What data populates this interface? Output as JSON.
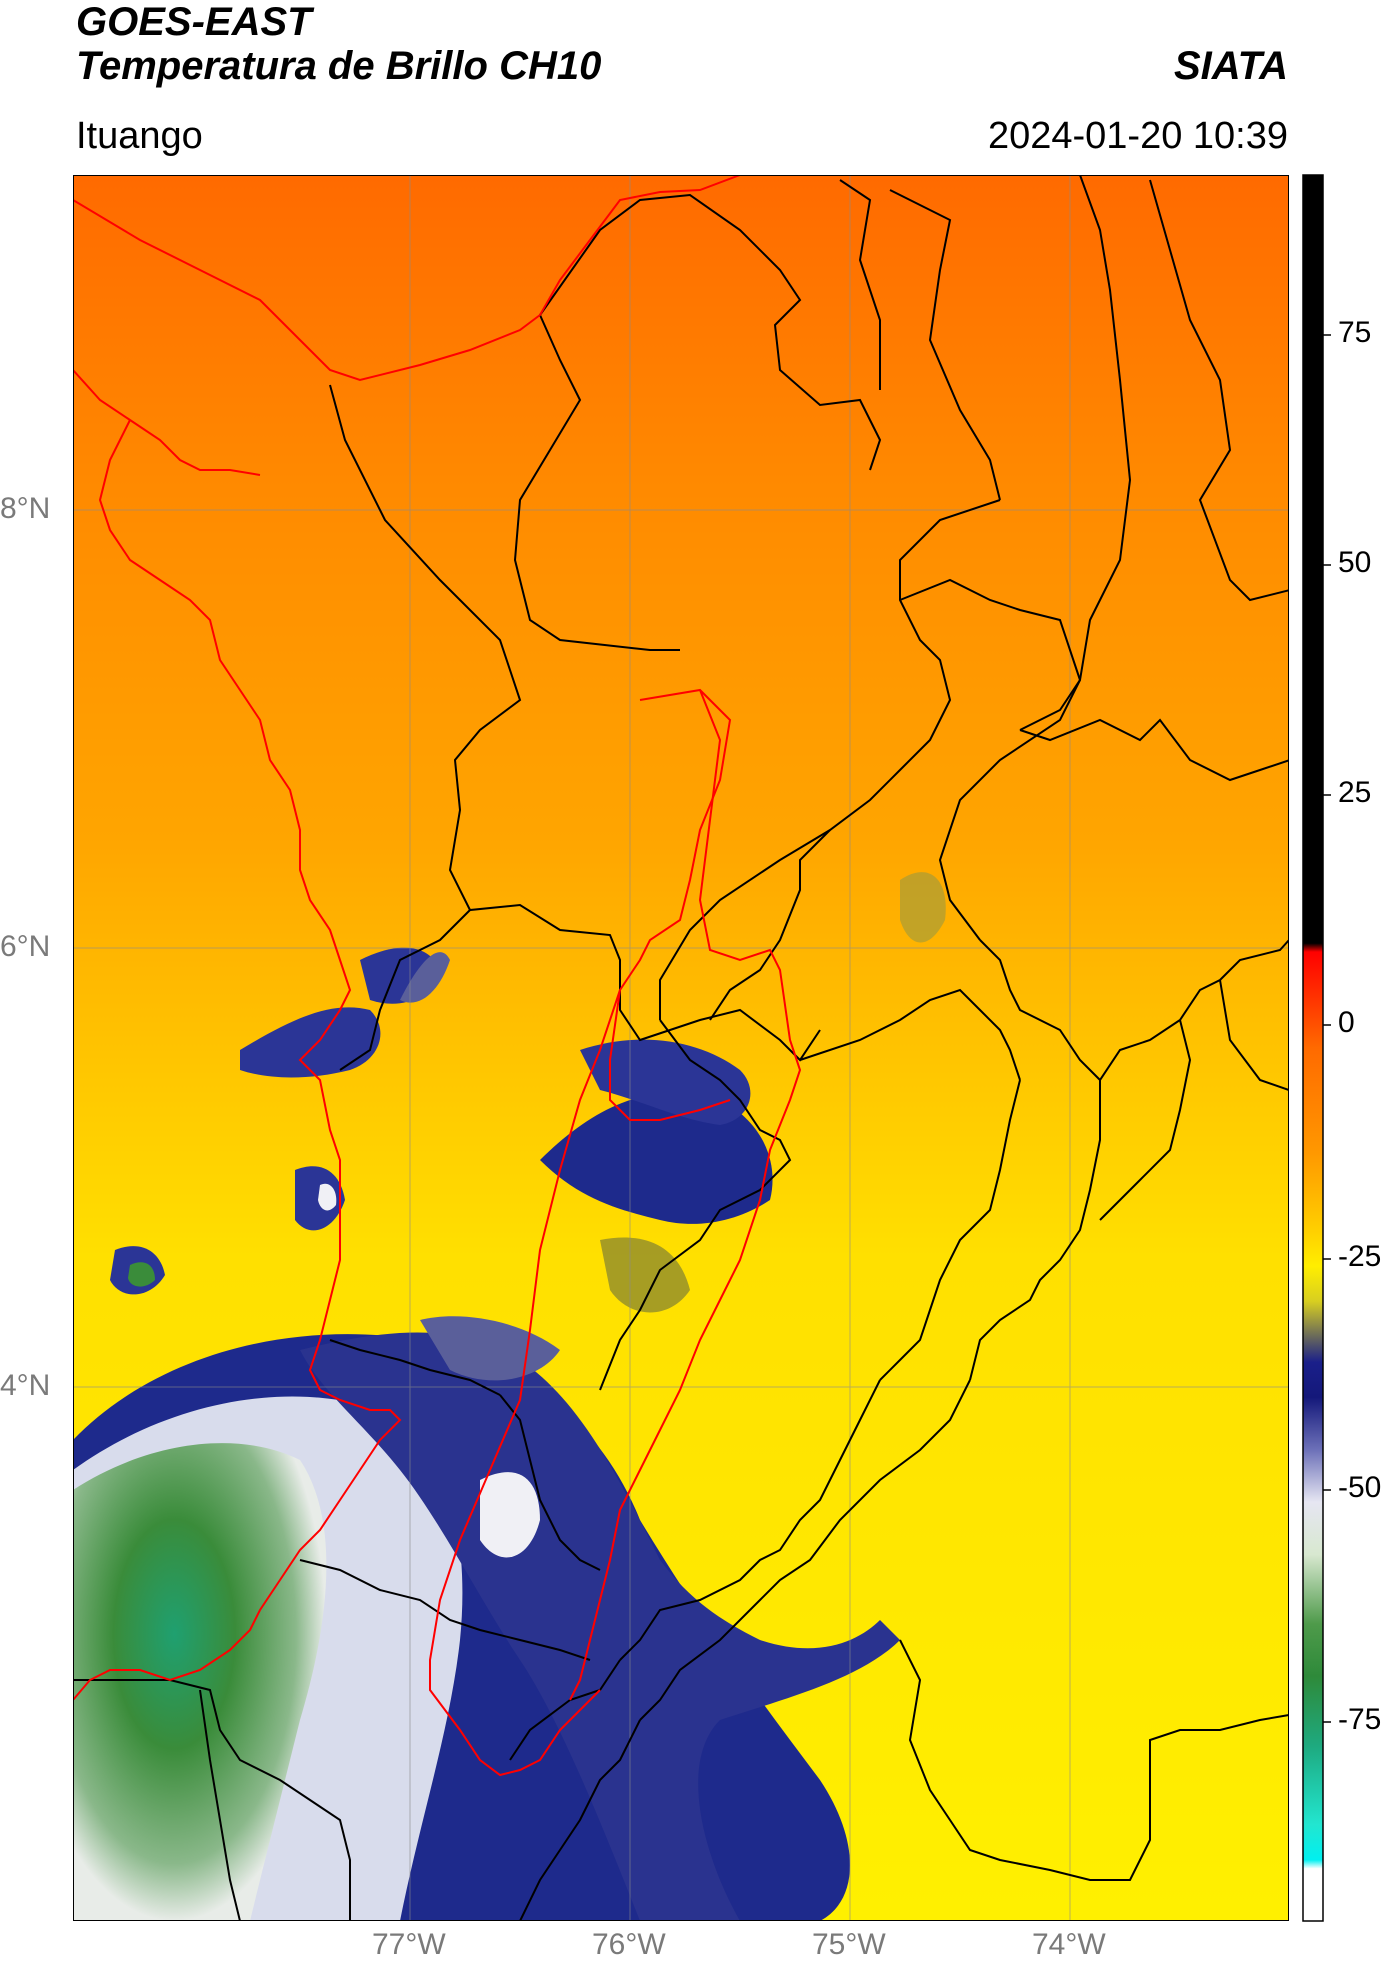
{
  "header": {
    "satellite": "GOES-EAST",
    "product": "Temperatura de Brillo CH10",
    "agency": "SIATA",
    "region": "Ituango",
    "datetime": "2024-01-20 10:39"
  },
  "map": {
    "lat_ticks": [
      {
        "label": "8°N",
        "lat": 8
      },
      {
        "label": "6°N",
        "lat": 6
      },
      {
        "label": "4°N",
        "lat": 4
      }
    ],
    "lon_ticks": [
      {
        "label": "77°W",
        "lon": -77
      },
      {
        "label": "76°W",
        "lon": -76
      },
      {
        "label": "75°W",
        "lon": -75
      },
      {
        "label": "74°W",
        "lon": -74
      }
    ],
    "colors": {
      "warm": "#ff7a00",
      "mid": "#ffa000",
      "yellow": "#ffe800",
      "cloud_blue": "#1e2a8c",
      "cloud_white": "#f2f2f8",
      "cloud_green": "#3a8c3a",
      "border_black": "#000000",
      "border_red": "#ff0000"
    }
  },
  "colorbar": {
    "ticks": [
      {
        "label": "75",
        "value": 75
      },
      {
        "label": "50",
        "value": 50
      },
      {
        "label": "25",
        "value": 25
      },
      {
        "label": "0",
        "value": 0
      },
      {
        "label": "-25",
        "value": -25
      },
      {
        "label": "-50",
        "value": -50
      },
      {
        "label": "-75",
        "value": -75
      }
    ]
  }
}
